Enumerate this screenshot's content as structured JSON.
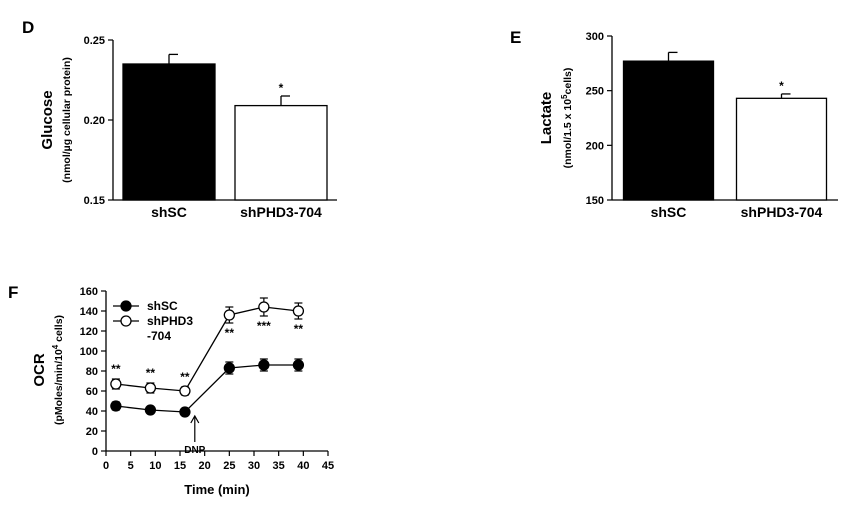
{
  "chart_data": [
    {
      "panel": "D",
      "type": "bar",
      "ylabel": "Glucose",
      "ylabel_unit": "(nmol/µg cellular protein)",
      "categories": [
        "shSC",
        "shPHD3-704"
      ],
      "values": [
        0.235,
        0.209
      ],
      "errors": [
        0.006,
        0.006
      ],
      "bar_colors": [
        "#000000",
        "#ffffff"
      ],
      "significance": [
        "",
        "*"
      ],
      "ylim": [
        0.15,
        0.25
      ],
      "yticks": [
        "0.15",
        "0.20",
        "0.25"
      ],
      "ytick_values": [
        0.15,
        0.2,
        0.25
      ]
    },
    {
      "panel": "E",
      "type": "bar",
      "ylabel": "Lactate",
      "ylabel_unit": "(nmol/1.5 x 10",
      "ylabel_unit_sup": "5",
      "ylabel_unit_end": "cells)",
      "categories": [
        "shSC",
        "shPHD3-704"
      ],
      "values": [
        277,
        243
      ],
      "errors": [
        8,
        4
      ],
      "bar_colors": [
        "#000000",
        "#ffffff"
      ],
      "significance": [
        "",
        "*"
      ],
      "ylim": [
        150,
        300
      ],
      "yticks": [
        "150",
        "200",
        "250",
        "300"
      ],
      "ytick_values": [
        150,
        200,
        250,
        300
      ]
    },
    {
      "panel": "F",
      "type": "line",
      "ylabel": "OCR",
      "ylabel_unit": "(pMoles/min/10",
      "ylabel_unit_sup": "4",
      "ylabel_unit_end": " cells)",
      "xlabel": "Time (min)",
      "x": [
        2,
        9,
        16,
        25,
        32,
        39
      ],
      "series": [
        {
          "name": "shSC",
          "fill": "#000000",
          "values": [
            45,
            41,
            39,
            83,
            86,
            86
          ],
          "errors": [
            4,
            3,
            3,
            6,
            6,
            6
          ]
        },
        {
          "name": "shPHD3\n-704",
          "name_line1": "shPHD3",
          "name_line2": "-704",
          "fill": "#ffffff",
          "values": [
            67,
            63,
            60,
            136,
            144,
            140
          ],
          "errors": [
            5,
            5,
            4,
            8,
            9,
            8
          ]
        }
      ],
      "significance": [
        "**",
        "**",
        "**",
        "**",
        "***",
        "**"
      ],
      "annotation": {
        "label": "DNP",
        "x": 18
      },
      "xlim": [
        0,
        45
      ],
      "ylim": [
        0,
        160
      ],
      "xticks": [
        "0",
        "5",
        "10",
        "15",
        "20",
        "25",
        "30",
        "35",
        "40",
        "45"
      ],
      "xtick_values": [
        0,
        5,
        10,
        15,
        20,
        25,
        30,
        35,
        40,
        45
      ],
      "yticks": [
        "0",
        "20",
        "40",
        "60",
        "80",
        "100",
        "120",
        "140",
        "160"
      ],
      "ytick_values": [
        0,
        20,
        40,
        60,
        80,
        100,
        120,
        140,
        160
      ]
    }
  ]
}
